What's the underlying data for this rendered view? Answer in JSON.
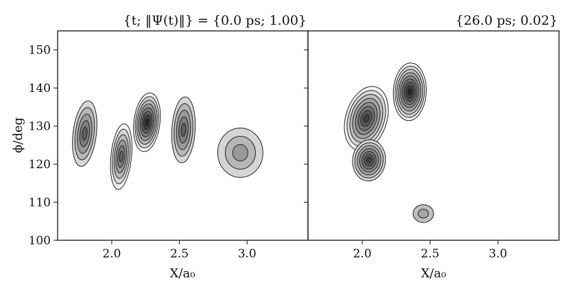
{
  "chart_data": [
    {
      "type": "contour",
      "title": "{t; ‖Ψ(t)‖} = {0.0 ps; 1.00}",
      "xlabel": "X/a₀",
      "ylabel": "ϕ/deg",
      "xlim": [
        1.6,
        3.45
      ],
      "ylim": [
        100,
        155
      ],
      "xticks": [
        2.0,
        2.5,
        3.0
      ],
      "yticks": [
        100,
        110,
        120,
        130,
        140,
        150
      ],
      "grid": false,
      "levels": 8,
      "colormap": "greys",
      "peaks": [
        {
          "x": 1.8,
          "y": 128,
          "amplitude": 0.6
        },
        {
          "x": 2.07,
          "y": 122,
          "amplitude": 0.8
        },
        {
          "x": 2.26,
          "y": 131,
          "amplitude": 1.0
        },
        {
          "x": 2.53,
          "y": 129,
          "amplitude": 0.6
        },
        {
          "x": 2.95,
          "y": 123,
          "amplitude": 0.35
        }
      ]
    },
    {
      "type": "contour",
      "title": "{26.0 ps; 0.02}",
      "xlabel": "X/a₀",
      "ylabel": "",
      "xlim": [
        1.6,
        3.45
      ],
      "ylim": [
        100,
        155
      ],
      "xticks": [
        2.0,
        2.5,
        3.0
      ],
      "yticks": [
        100,
        110,
        120,
        130,
        140,
        150
      ],
      "grid": false,
      "levels": 9,
      "colormap": "greys",
      "peaks": [
        {
          "x": 2.03,
          "y": 132,
          "amplitude": 0.85
        },
        {
          "x": 2.35,
          "y": 139,
          "amplitude": 1.0
        },
        {
          "x": 2.05,
          "y": 121,
          "amplitude": 0.75
        },
        {
          "x": 2.45,
          "y": 107,
          "amplitude": 0.15
        }
      ]
    }
  ]
}
